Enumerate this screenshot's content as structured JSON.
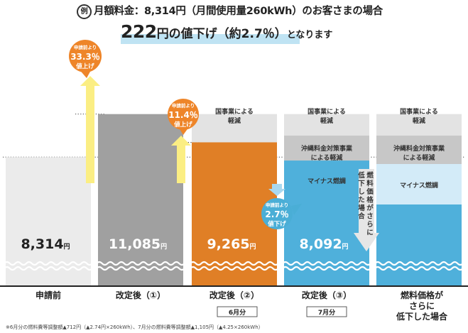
{
  "header": {
    "example_mark": "例",
    "line1": "月額料金：8,314円（月間使用量260kWh）のお客さまの場合",
    "line2_amount": "222",
    "line2_unit": "円の値下げ",
    "line2_percent": "（約2.7％）",
    "line2_suffix": "となります"
  },
  "chart_data": {
    "type": "bar",
    "categories": [
      "申請前",
      "改定後（①）",
      "改定後（②）",
      "改定後（③）",
      "燃料価格がさらに低下した場合"
    ],
    "category_lines": [
      [
        "申請前"
      ],
      [
        "改定後（①）"
      ],
      [
        "改定後（②）"
      ],
      [
        "改定後（③）"
      ],
      [
        "燃料価格が",
        "さらに",
        "低下した場合"
      ]
    ],
    "sublabels": [
      "",
      "",
      "6月分",
      "7月分",
      ""
    ],
    "values": [
      8314,
      11085,
      9265,
      8092,
      null
    ],
    "value_unit": "円",
    "stacked_segments": {
      "改定後（②）": [
        "国事業による軽減"
      ],
      "改定後（③）": [
        "国事業による軽減",
        "沖縄料金対策事業による軽減",
        "マイナス燃調"
      ],
      "燃料価格がさらに低下した場合": [
        "国事業による軽減",
        "沖縄料金対策事業による軽減",
        "マイナス燃調"
      ]
    },
    "segment_labels": {
      "national": [
        "国事業による",
        "軽減"
      ],
      "okinawa": [
        "沖縄料金対策事業",
        "による軽減"
      ],
      "minus_fuel": [
        "マイナス燃調"
      ]
    },
    "callouts": [
      {
        "lines": [
          "申請前より",
          "33.3％",
          "値上げ"
        ],
        "color": "#ee8529"
      },
      {
        "lines": [
          "申請前より",
          "11.4％",
          "値上げ"
        ],
        "color": "#ee8529"
      },
      {
        "lines": [
          "申請前より",
          "2.7％",
          "値下げ"
        ],
        "color": "#4aaed6"
      }
    ],
    "side_arrow": [
      "燃料価格がさらに",
      "低下した場合"
    ],
    "colors": {
      "before": "#ebebeb",
      "kaitei1": "#a0a0a0",
      "kaitei2": "#e07f26",
      "kaitei3": "#4fb0db",
      "national": "#e3e3e3",
      "okinawa": "#c7c7c7",
      "minus_fuel": "#d3ebf8",
      "arrow_yellow": "#fbee83"
    }
  },
  "footnote": "※6月分の燃料費等調整額▲712円（▲2.74円×260kWh）、7月分の燃料費等調整額▲1,105円（▲4.25×260kWh）"
}
